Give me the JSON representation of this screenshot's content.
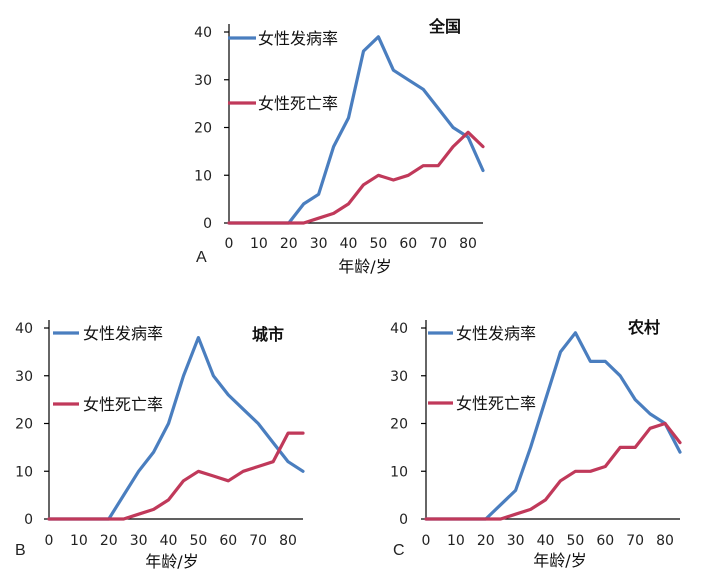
{
  "chart_data": [
    {
      "type": "line",
      "panel": "A",
      "title": "全国",
      "xlabel": "年龄/岁",
      "ylabel": "",
      "xlim": [
        0,
        85
      ],
      "ylim": [
        0,
        40
      ],
      "x_ticks": [
        0,
        10,
        20,
        30,
        40,
        50,
        60,
        70,
        80
      ],
      "y_ticks": [
        0,
        10,
        20,
        30,
        40
      ],
      "legend": "top-left",
      "grid": false,
      "series": [
        {
          "name": "女性发病率",
          "color": "#4A7EBF",
          "x": [
            0,
            5,
            10,
            15,
            20,
            25,
            30,
            35,
            40,
            45,
            50,
            55,
            60,
            65,
            70,
            75,
            80,
            85
          ],
          "values": [
            0,
            0,
            0,
            0,
            0,
            4,
            6,
            16,
            22,
            36,
            39,
            32,
            30,
            28,
            24,
            20,
            18,
            11
          ]
        },
        {
          "name": "女性死亡率",
          "color": "#C0395A",
          "x": [
            0,
            5,
            10,
            15,
            20,
            25,
            30,
            35,
            40,
            45,
            50,
            55,
            60,
            65,
            70,
            75,
            80,
            85
          ],
          "values": [
            0,
            0,
            0,
            0,
            0,
            0,
            1,
            2,
            4,
            8,
            10,
            9,
            10,
            12,
            12,
            16,
            19,
            16
          ]
        }
      ]
    },
    {
      "type": "line",
      "panel": "B",
      "title": "城市",
      "xlabel": "年龄/岁",
      "ylabel": "",
      "xlim": [
        0,
        85
      ],
      "ylim": [
        0,
        40
      ],
      "x_ticks": [
        0,
        10,
        20,
        30,
        40,
        50,
        60,
        70,
        80
      ],
      "y_ticks": [
        0,
        10,
        20,
        30,
        40
      ],
      "legend": "top-left",
      "grid": false,
      "series": [
        {
          "name": "女性发病率",
          "color": "#4A7EBF",
          "x": [
            0,
            5,
            10,
            15,
            20,
            25,
            30,
            35,
            40,
            45,
            50,
            55,
            60,
            65,
            70,
            75,
            80,
            85
          ],
          "values": [
            0,
            0,
            0,
            0,
            0,
            5,
            10,
            14,
            20,
            30,
            38,
            30,
            26,
            23,
            20,
            16,
            12,
            10
          ]
        },
        {
          "name": "女性死亡率",
          "color": "#C0395A",
          "x": [
            0,
            5,
            10,
            15,
            20,
            25,
            30,
            35,
            40,
            45,
            50,
            55,
            60,
            65,
            70,
            75,
            80,
            85
          ],
          "values": [
            0,
            0,
            0,
            0,
            0,
            0,
            1,
            2,
            4,
            8,
            10,
            9,
            8,
            10,
            11,
            12,
            18,
            18
          ]
        }
      ]
    },
    {
      "type": "line",
      "panel": "C",
      "title": "农村",
      "xlabel": "年龄/岁",
      "ylabel": "",
      "xlim": [
        0,
        85
      ],
      "ylim": [
        0,
        40
      ],
      "x_ticks": [
        0,
        10,
        20,
        30,
        40,
        50,
        60,
        70,
        80
      ],
      "y_ticks": [
        0,
        10,
        20,
        30,
        40
      ],
      "legend": "top-left",
      "grid": false,
      "series": [
        {
          "name": "女性发病率",
          "color": "#4A7EBF",
          "x": [
            0,
            5,
            10,
            15,
            20,
            25,
            30,
            35,
            40,
            45,
            50,
            55,
            60,
            65,
            70,
            75,
            80,
            85
          ],
          "values": [
            0,
            0,
            0,
            0,
            0,
            3,
            6,
            15,
            25,
            35,
            39,
            33,
            33,
            30,
            25,
            22,
            20,
            14
          ]
        },
        {
          "name": "女性死亡率",
          "color": "#C0395A",
          "x": [
            0,
            5,
            10,
            15,
            20,
            25,
            30,
            35,
            40,
            45,
            50,
            55,
            60,
            65,
            70,
            75,
            80,
            85
          ],
          "values": [
            0,
            0,
            0,
            0,
            0,
            0,
            1,
            2,
            4,
            8,
            10,
            10,
            11,
            15,
            15,
            19,
            20,
            16
          ]
        }
      ]
    }
  ]
}
